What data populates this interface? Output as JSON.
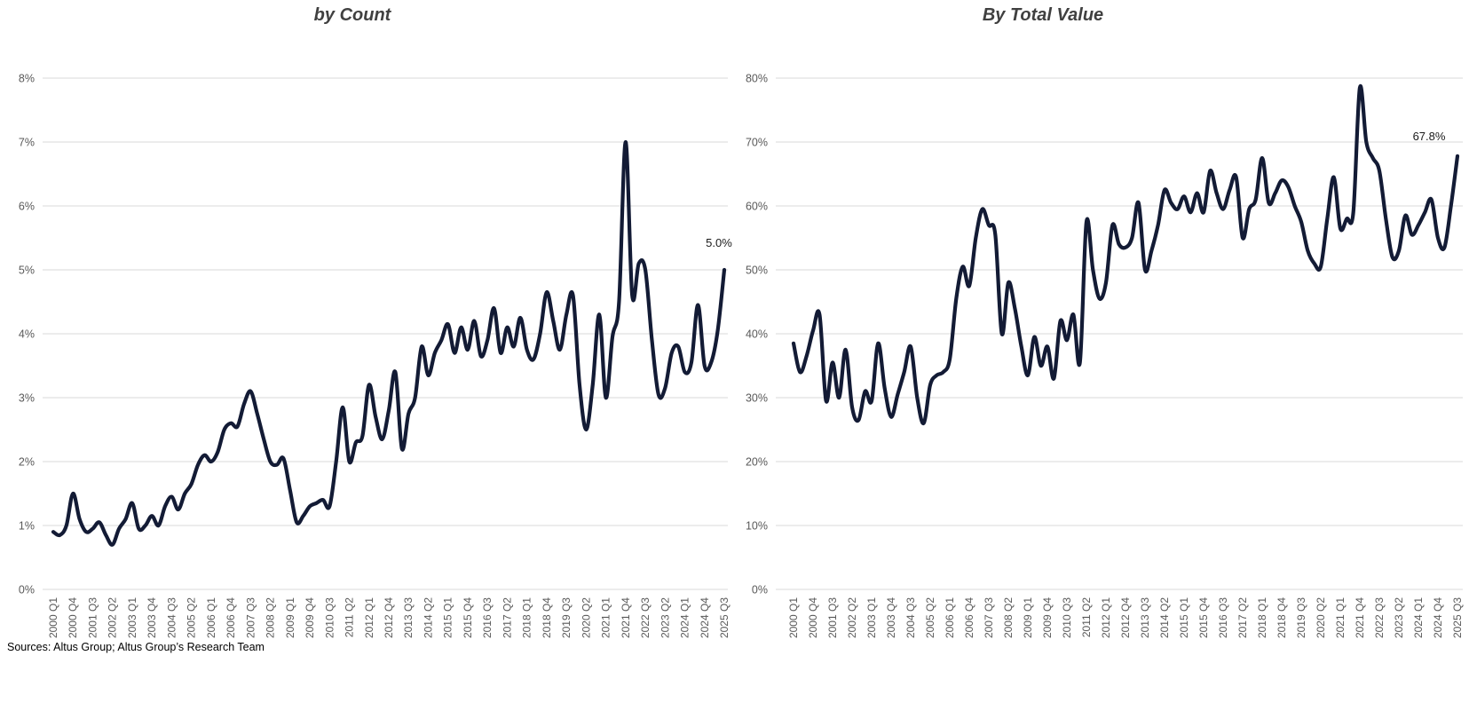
{
  "footer": {
    "sources": "Sources: Altus Group; Altus Group’s Research Team"
  },
  "colors": {
    "line": "#131b35",
    "grid": "#d9d9d9",
    "axis_text": "#595959",
    "title_text": "#404040",
    "annotation_text": "#1a1a1a"
  },
  "chart_data": [
    {
      "type": "line",
      "title": "by Count",
      "xlabel": "",
      "ylabel": "",
      "ylim": [
        0,
        8
      ],
      "y_tick_step": 1,
      "y_tick_suffix": "%",
      "x_tick_every": 3,
      "grid": "horizontal",
      "legend": "none",
      "end_label": "5.0%",
      "categories": [
        "2000 Q1",
        "2000 Q2",
        "2000 Q3",
        "2000 Q4",
        "2001 Q1",
        "2001 Q2",
        "2001 Q3",
        "2001 Q4",
        "2002 Q1",
        "2002 Q2",
        "2002 Q3",
        "2002 Q4",
        "2003 Q1",
        "2003 Q2",
        "2003 Q3",
        "2003 Q4",
        "2004 Q1",
        "2004 Q2",
        "2004 Q3",
        "2004 Q4",
        "2005 Q1",
        "2005 Q2",
        "2005 Q3",
        "2005 Q4",
        "2006 Q1",
        "2006 Q2",
        "2006 Q3",
        "2006 Q4",
        "2007 Q1",
        "2007 Q2",
        "2007 Q3",
        "2007 Q4",
        "2008 Q1",
        "2008 Q2",
        "2008 Q3",
        "2008 Q4",
        "2009 Q1",
        "2009 Q2",
        "2009 Q3",
        "2009 Q4",
        "2010 Q1",
        "2010 Q2",
        "2010 Q3",
        "2010 Q4",
        "2011 Q1",
        "2011 Q2",
        "2011 Q3",
        "2011 Q4",
        "2012 Q1",
        "2012 Q2",
        "2012 Q3",
        "2012 Q4",
        "2013 Q1",
        "2013 Q2",
        "2013 Q3",
        "2013 Q4",
        "2014 Q1",
        "2014 Q2",
        "2014 Q3",
        "2014 Q4",
        "2015 Q1",
        "2015 Q2",
        "2015 Q3",
        "2015 Q4",
        "2016 Q1",
        "2016 Q2",
        "2016 Q3",
        "2016 Q4",
        "2017 Q1",
        "2017 Q2",
        "2017 Q3",
        "2017 Q4",
        "2018 Q1",
        "2018 Q2",
        "2018 Q3",
        "2018 Q4",
        "2019 Q1",
        "2019 Q2",
        "2019 Q3",
        "2019 Q4",
        "2020 Q1",
        "2020 Q2",
        "2020 Q3",
        "2020 Q4",
        "2021 Q1",
        "2021 Q2",
        "2021 Q3",
        "2021 Q4",
        "2022 Q1",
        "2022 Q2",
        "2022 Q3",
        "2022 Q4",
        "2023 Q1",
        "2023 Q2",
        "2023 Q3",
        "2023 Q4",
        "2024 Q1",
        "2024 Q2",
        "2024 Q3",
        "2024 Q4",
        "2025 Q1",
        "2025 Q2",
        "2025 Q3"
      ],
      "values": [
        0.9,
        0.85,
        1.0,
        1.5,
        1.1,
        0.9,
        0.95,
        1.05,
        0.85,
        0.7,
        0.95,
        1.1,
        1.35,
        0.95,
        1.0,
        1.15,
        1.0,
        1.3,
        1.45,
        1.25,
        1.5,
        1.65,
        1.95,
        2.1,
        2.0,
        2.15,
        2.5,
        2.6,
        2.55,
        2.9,
        3.1,
        2.75,
        2.35,
        2.0,
        1.95,
        2.05,
        1.55,
        1.05,
        1.15,
        1.3,
        1.35,
        1.4,
        1.3,
        2.0,
        2.85,
        2.0,
        2.3,
        2.4,
        3.2,
        2.7,
        2.35,
        2.8,
        3.4,
        2.2,
        2.75,
        3.0,
        3.8,
        3.35,
        3.7,
        3.9,
        4.15,
        3.7,
        4.1,
        3.75,
        4.2,
        3.65,
        3.9,
        4.4,
        3.7,
        4.1,
        3.8,
        4.25,
        3.75,
        3.6,
        4.0,
        4.65,
        4.2,
        3.75,
        4.3,
        4.6,
        3.2,
        2.5,
        3.2,
        4.3,
        3.0,
        3.95,
        4.5,
        7.0,
        4.6,
        5.1,
        5.0,
        3.9,
        3.05,
        3.15,
        3.7,
        3.8,
        3.4,
        3.55,
        4.45,
        3.5,
        3.55,
        4.05,
        5.0
      ]
    },
    {
      "type": "line",
      "title": "By Total Value",
      "xlabel": "",
      "ylabel": "",
      "ylim": [
        0,
        80
      ],
      "y_tick_step": 10,
      "y_tick_suffix": "%",
      "x_tick_every": 3,
      "grid": "horizontal",
      "legend": "none",
      "end_label": "67.8%",
      "categories": [
        "2000 Q1",
        "2000 Q2",
        "2000 Q3",
        "2000 Q4",
        "2001 Q1",
        "2001 Q2",
        "2001 Q3",
        "2001 Q4",
        "2002 Q1",
        "2002 Q2",
        "2002 Q3",
        "2002 Q4",
        "2003 Q1",
        "2003 Q2",
        "2003 Q3",
        "2003 Q4",
        "2004 Q1",
        "2004 Q2",
        "2004 Q3",
        "2004 Q4",
        "2005 Q1",
        "2005 Q2",
        "2005 Q3",
        "2005 Q4",
        "2006 Q1",
        "2006 Q2",
        "2006 Q3",
        "2006 Q4",
        "2007 Q1",
        "2007 Q2",
        "2007 Q3",
        "2007 Q4",
        "2008 Q1",
        "2008 Q2",
        "2008 Q3",
        "2008 Q4",
        "2009 Q1",
        "2009 Q2",
        "2009 Q3",
        "2009 Q4",
        "2010 Q1",
        "2010 Q2",
        "2010 Q3",
        "2010 Q4",
        "2011 Q1",
        "2011 Q2",
        "2011 Q3",
        "2011 Q4",
        "2012 Q1",
        "2012 Q2",
        "2012 Q3",
        "2012 Q4",
        "2013 Q1",
        "2013 Q2",
        "2013 Q3",
        "2013 Q4",
        "2014 Q1",
        "2014 Q2",
        "2014 Q3",
        "2014 Q4",
        "2015 Q1",
        "2015 Q2",
        "2015 Q3",
        "2015 Q4",
        "2016 Q1",
        "2016 Q2",
        "2016 Q3",
        "2016 Q4",
        "2017 Q1",
        "2017 Q2",
        "2017 Q3",
        "2017 Q4",
        "2018 Q1",
        "2018 Q2",
        "2018 Q3",
        "2018 Q4",
        "2019 Q1",
        "2019 Q2",
        "2019 Q3",
        "2019 Q4",
        "2020 Q1",
        "2020 Q2",
        "2020 Q3",
        "2020 Q4",
        "2021 Q1",
        "2021 Q2",
        "2021 Q3",
        "2021 Q4",
        "2022 Q1",
        "2022 Q2",
        "2022 Q3",
        "2022 Q4",
        "2023 Q1",
        "2023 Q2",
        "2023 Q3",
        "2023 Q4",
        "2024 Q1",
        "2024 Q2",
        "2024 Q3",
        "2024 Q4",
        "2025 Q1",
        "2025 Q2",
        "2025 Q3"
      ],
      "values": [
        38.5,
        34.0,
        36.5,
        40.5,
        43.0,
        29.5,
        35.5,
        30.0,
        37.5,
        28.5,
        26.5,
        31.0,
        29.5,
        38.5,
        31.5,
        27.0,
        30.5,
        34.0,
        38.0,
        30.0,
        26.0,
        32.0,
        33.5,
        34.0,
        36.0,
        45.5,
        50.5,
        47.5,
        55.0,
        59.5,
        57.0,
        55.5,
        40.0,
        48.0,
        44.0,
        38.0,
        33.5,
        39.5,
        35.0,
        38.0,
        33.0,
        42.0,
        39.0,
        43.0,
        35.5,
        57.5,
        50.0,
        45.5,
        48.0,
        57.0,
        54.0,
        53.5,
        55.0,
        60.5,
        50.0,
        53.0,
        57.0,
        62.5,
        60.5,
        59.5,
        61.5,
        59.0,
        62.0,
        59.0,
        65.5,
        62.0,
        59.5,
        62.5,
        64.5,
        55.0,
        59.5,
        61.0,
        67.5,
        60.5,
        62.0,
        64.0,
        63.0,
        60.0,
        57.5,
        53.0,
        51.0,
        50.5,
        58.0,
        64.5,
        56.5,
        58.0,
        59.0,
        78.5,
        70.0,
        67.5,
        65.5,
        58.0,
        52.0,
        53.0,
        58.5,
        55.5,
        57.0,
        59.0,
        61.0,
        55.0,
        53.5,
        60.0,
        67.8
      ]
    }
  ]
}
